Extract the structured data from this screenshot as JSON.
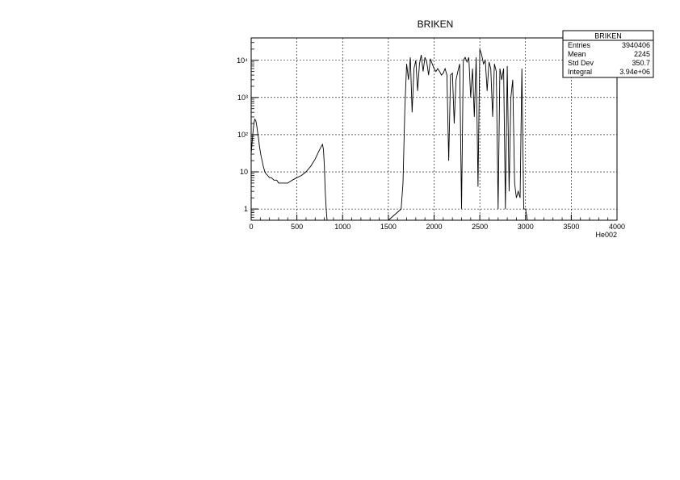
{
  "chart_data": {
    "type": "line",
    "title": "BRIKEN",
    "xlabel": "He002",
    "ylabel": "",
    "xlim": [
      0,
      4000
    ],
    "ylim": [
      0.5,
      40000
    ],
    "y_scale": "log",
    "grid": true,
    "x_ticks": [
      0,
      500,
      1000,
      1500,
      2000,
      2500,
      3000,
      3500,
      4000
    ],
    "x_tick_labels": [
      "0",
      "500",
      "1000",
      "1500",
      "2000",
      "2500",
      "3000",
      "3500",
      "4000"
    ],
    "y_ticks": [
      1,
      10,
      100,
      1000,
      10000
    ],
    "y_tick_labels": [
      "1",
      "10",
      "10²",
      "10³",
      "10⁴"
    ],
    "stats_box": {
      "title": "BRIKEN",
      "rows": [
        {
          "label": "Entries",
          "value": "3940406"
        },
        {
          "label": "Mean",
          "value": "2245"
        },
        {
          "label": "Std Dev",
          "value": "350.7"
        },
        {
          "label": "Integral",
          "value": "3.94e+06"
        }
      ]
    },
    "series": [
      {
        "x": [
          0,
          10,
          20,
          30,
          40,
          50,
          60,
          70,
          80,
          90,
          100,
          110,
          120,
          130,
          140,
          150,
          160,
          180,
          200,
          220,
          250,
          280,
          300,
          330,
          360,
          400,
          450,
          500,
          550,
          600,
          650,
          700,
          730,
          760,
          780,
          790,
          800,
          810,
          820,
          830,
          1000,
          1500,
          1640,
          1660,
          1680,
          1700,
          1720,
          1740,
          1760,
          1780,
          1800,
          1820,
          1840,
          1860,
          1880,
          1900,
          1920,
          1940,
          1960,
          1980,
          2000,
          2020,
          2040,
          2060,
          2080,
          2100,
          2120,
          2140,
          2160,
          2180,
          2200,
          2220,
          2240,
          2260,
          2280,
          2300,
          2320,
          2340,
          2360,
          2380,
          2400,
          2420,
          2440,
          2460,
          2480,
          2500,
          2520,
          2540,
          2560,
          2580,
          2600,
          2620,
          2640,
          2660,
          2680,
          2700,
          2720,
          2740,
          2760,
          2780,
          2800,
          2820,
          2840,
          2860,
          2880,
          2900,
          2920,
          2940,
          2960,
          2980,
          3000,
          3020,
          3040,
          3200,
          3500,
          3800,
          4000
        ],
        "y": [
          30,
          60,
          120,
          200,
          260,
          240,
          180,
          120,
          80,
          50,
          35,
          25,
          20,
          15,
          12,
          10,
          9,
          8,
          7,
          7,
          6,
          6,
          5,
          5,
          5,
          5,
          6,
          7,
          8,
          10,
          14,
          22,
          32,
          45,
          55,
          40,
          15,
          3,
          1,
          0.5,
          0.5,
          0.5,
          1,
          5,
          500,
          8000,
          3000,
          12000,
          400,
          6000,
          10000,
          1500,
          8000,
          14000,
          5000,
          12000,
          9000,
          4000,
          11000,
          8000,
          6000,
          5000,
          6000,
          5000,
          4000,
          4500,
          6000,
          4000,
          20,
          4000,
          4500,
          200,
          3000,
          5000,
          8000,
          1,
          10000,
          12000,
          9000,
          12000,
          1000,
          6000,
          300,
          12000,
          4,
          20000,
          14000,
          8000,
          10000,
          1500,
          9000,
          6000,
          300,
          8000,
          5000,
          1,
          6000,
          3000,
          6000,
          1,
          7000,
          3,
          1000,
          3000,
          5,
          2,
          3,
          2,
          6000,
          1,
          1,
          0.5,
          0.5,
          0.5,
          0.5,
          0.5,
          0.5
        ]
      }
    ]
  }
}
